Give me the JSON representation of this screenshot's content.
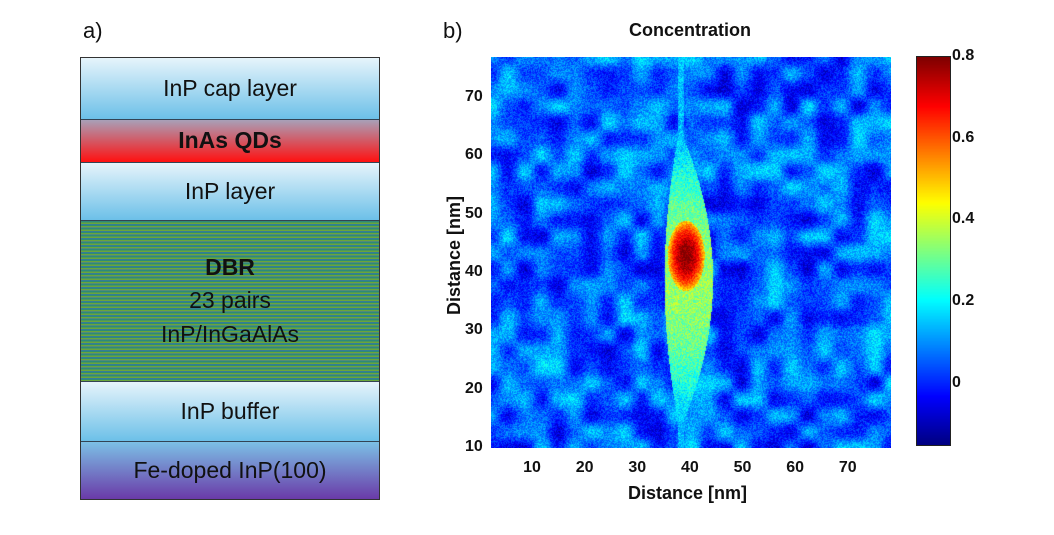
{
  "panel_a": {
    "label": "a)",
    "layers": [
      {
        "lines": [
          "InP cap layer"
        ]
      },
      {
        "lines": [
          "InAs QDs"
        ]
      },
      {
        "lines": [
          "InP layer"
        ]
      },
      {
        "lines": [
          "DBR",
          "23 pairs",
          "InP/InGaAlAs"
        ]
      },
      {
        "lines": [
          "InP buffer"
        ]
      },
      {
        "lines": [
          "Fe-doped InP(100)"
        ]
      }
    ]
  },
  "panel_b": {
    "label": "b)"
  },
  "chart_data": {
    "type": "heatmap",
    "title": "Concentration",
    "xlabel": "Distance [nm]",
    "ylabel": "Distance [nm]",
    "xlim": [
      2,
      78
    ],
    "ylim": [
      10,
      77
    ],
    "xticks": [
      "10",
      "20",
      "30",
      "40",
      "50",
      "60",
      "70"
    ],
    "yticks": [
      "10",
      "20",
      "30",
      "40",
      "50",
      "60",
      "70"
    ],
    "colormap": "jet",
    "colorbar": {
      "range": [
        -0.15,
        0.8
      ],
      "ticks": [
        "0",
        "0.2",
        "0.4",
        "0.6",
        "0.8"
      ]
    },
    "background_level": 0.05,
    "features": {
      "streak": {
        "x_center": 39,
        "y_range": [
          15,
          63
        ],
        "max_half_width": 4,
        "value": 0.35
      },
      "hotspot": {
        "x": 39,
        "y": 43,
        "value": 0.8
      }
    },
    "grid": false
  }
}
